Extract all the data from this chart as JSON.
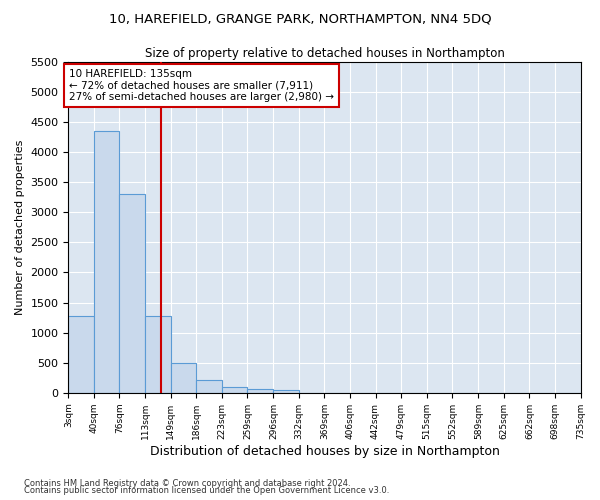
{
  "title": "10, HAREFIELD, GRANGE PARK, NORTHAMPTON, NN4 5DQ",
  "subtitle": "Size of property relative to detached houses in Northampton",
  "xlabel": "Distribution of detached houses by size in Northampton",
  "ylabel": "Number of detached properties",
  "bar_color": "#c9d9ec",
  "bar_edge_color": "#5b9bd5",
  "background_color": "#dce6f1",
  "grid_color": "#ffffff",
  "vline_color": "#cc0000",
  "vline_x": 135,
  "annotation_line1": "10 HAREFIELD: 135sqm",
  "annotation_line2": "← 72% of detached houses are smaller (7,911)",
  "annotation_line3": "27% of semi-detached houses are larger (2,980) →",
  "annotation_box_color": "#ffffff",
  "annotation_box_edge": "#cc0000",
  "bin_edges": [
    3,
    40,
    76,
    113,
    149,
    186,
    223,
    259,
    296,
    332,
    369,
    406,
    442,
    479,
    515,
    552,
    589,
    625,
    662,
    698,
    735
  ],
  "bar_heights": [
    1270,
    4350,
    3300,
    1270,
    490,
    210,
    90,
    60,
    55,
    0,
    0,
    0,
    0,
    0,
    0,
    0,
    0,
    0,
    0,
    0
  ],
  "ylim": [
    0,
    5500
  ],
  "yticks": [
    0,
    500,
    1000,
    1500,
    2000,
    2500,
    3000,
    3500,
    4000,
    4500,
    5000,
    5500
  ],
  "footnote1": "Contains HM Land Registry data © Crown copyright and database right 2024.",
  "footnote2": "Contains public sector information licensed under the Open Government Licence v3.0."
}
